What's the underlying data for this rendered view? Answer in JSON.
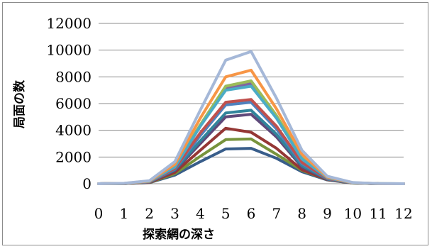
{
  "chart_data": {
    "type": "line",
    "xlabel": "探索網の深さ",
    "ylabel": "局面の数",
    "ylim": [
      0,
      12000
    ],
    "yticks": [
      0,
      2000,
      4000,
      6000,
      8000,
      10000,
      12000
    ],
    "categories": [
      "0",
      "1",
      "2",
      "3",
      "4",
      "5",
      "6",
      "7",
      "8",
      "9",
      "10",
      "11",
      "12"
    ],
    "grid": true,
    "legend": "none",
    "series": [
      {
        "color": "#385d8a",
        "values": [
          0,
          10,
          80,
          650,
          1650,
          2600,
          2650,
          1900,
          900,
          280,
          50,
          5,
          0
        ]
      },
      {
        "color": "#77933c",
        "values": [
          0,
          10,
          90,
          750,
          2050,
          3300,
          3350,
          2200,
          1000,
          300,
          50,
          5,
          0
        ]
      },
      {
        "color": "#953735",
        "values": [
          0,
          10,
          100,
          850,
          2500,
          4150,
          3850,
          2650,
          1050,
          310,
          55,
          5,
          0
        ]
      },
      {
        "color": "#5f497a",
        "values": [
          0,
          15,
          120,
          1000,
          3000,
          5000,
          5200,
          3500,
          1250,
          330,
          55,
          5,
          0
        ]
      },
      {
        "color": "#31849b",
        "values": [
          0,
          15,
          130,
          1050,
          3200,
          5300,
          5500,
          3700,
          1350,
          350,
          60,
          5,
          0
        ]
      },
      {
        "color": "#4f81bd",
        "values": [
          0,
          15,
          140,
          1100,
          3600,
          5900,
          6100,
          4100,
          1500,
          380,
          60,
          5,
          0
        ]
      },
      {
        "color": "#c0504d",
        "values": [
          0,
          15,
          150,
          1150,
          3800,
          6100,
          6300,
          4300,
          1600,
          400,
          65,
          5,
          0
        ]
      },
      {
        "color": "#8064a2",
        "values": [
          0,
          20,
          170,
          1250,
          4300,
          7100,
          7500,
          5000,
          1900,
          450,
          70,
          5,
          0
        ]
      },
      {
        "color": "#9bbb59",
        "values": [
          0,
          20,
          180,
          1300,
          4400,
          7300,
          7700,
          5100,
          1950,
          460,
          70,
          5,
          0
        ]
      },
      {
        "color": "#4bacc6",
        "values": [
          0,
          20,
          170,
          1250,
          4300,
          7000,
          7300,
          4900,
          1850,
          440,
          70,
          5,
          0
        ]
      },
      {
        "color": "#f79646",
        "values": [
          0,
          25,
          200,
          1450,
          4900,
          8000,
          8500,
          5600,
          2200,
          500,
          80,
          5,
          0
        ]
      },
      {
        "color": "#a5b8d8",
        "values": [
          0,
          30,
          230,
          1650,
          5500,
          9250,
          9900,
          6400,
          2500,
          560,
          90,
          10,
          0
        ]
      }
    ]
  }
}
